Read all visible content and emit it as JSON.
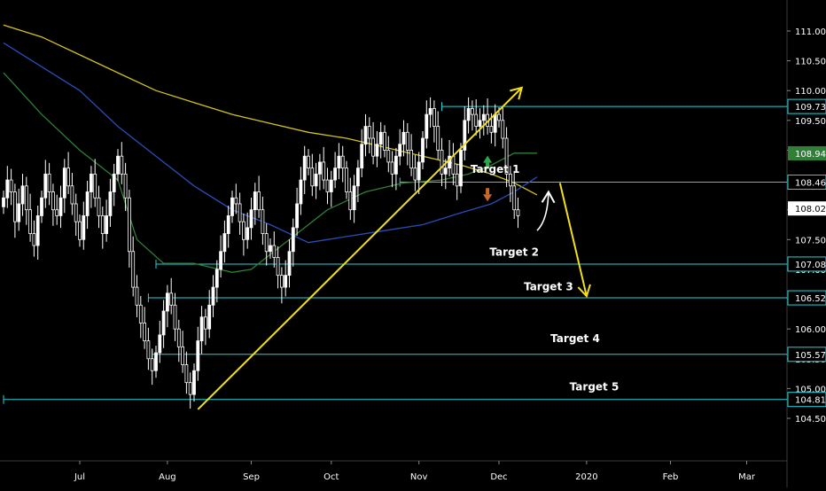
{
  "chart_data": {
    "type": "candlestick",
    "title": "",
    "xlabel": "",
    "ylabel": "",
    "ylim": [
      104.3,
      111.5
    ],
    "y_ticks": [
      104.5,
      105.0,
      105.5,
      106.0,
      106.5,
      107.0,
      107.5,
      108.0,
      108.5,
      109.0,
      109.5,
      110.0,
      110.5,
      111.0
    ],
    "y_tick_labels": [
      "104.500",
      "105.000",
      "105.500",
      "106.000",
      "106.500",
      "107.000",
      "107.500",
      "108.000",
      "108.500",
      "109.000",
      "109.500",
      "110.000",
      "110.500",
      "111.000"
    ],
    "x_ticks": [
      {
        "label": "Jul",
        "date": "2019-07-01"
      },
      {
        "label": "Aug",
        "date": "2019-08-01"
      },
      {
        "label": "Sep",
        "date": "2019-09-02"
      },
      {
        "label": "Oct",
        "date": "2019-10-01"
      },
      {
        "label": "Nov",
        "date": "2019-11-01"
      },
      {
        "label": "Dec",
        "date": "2019-12-02"
      },
      {
        "label": "2020",
        "date": "2020-01-02"
      },
      {
        "label": "Feb",
        "date": "2020-02-03"
      },
      {
        "label": "Mar",
        "date": "2020-03-02"
      }
    ],
    "price_closes": [
      108.2,
      108.5,
      108.3,
      107.8,
      108.1,
      108.4,
      108.0,
      107.6,
      107.4,
      107.9,
      108.2,
      108.6,
      108.3,
      108.0,
      107.9,
      108.2,
      108.7,
      108.4,
      108.1,
      107.8,
      107.5,
      107.9,
      108.3,
      108.6,
      108.2,
      107.9,
      107.6,
      107.9,
      108.3,
      108.6,
      108.9,
      108.6,
      108.2,
      107.3,
      106.7,
      106.4,
      106.1,
      105.8,
      105.5,
      105.3,
      105.6,
      105.9,
      106.3,
      106.6,
      106.4,
      106.0,
      105.7,
      105.4,
      105.1,
      104.9,
      105.3,
      105.8,
      106.2,
      106.0,
      106.4,
      106.7,
      107.0,
      107.3,
      107.6,
      107.9,
      108.2,
      108.1,
      107.8,
      107.5,
      107.7,
      108.0,
      108.3,
      108.0,
      107.6,
      107.3,
      107.4,
      107.2,
      106.9,
      106.7,
      106.9,
      107.3,
      107.7,
      108.1,
      108.5,
      108.9,
      108.7,
      108.4,
      108.6,
      108.8,
      108.5,
      108.3,
      108.5,
      108.7,
      108.9,
      108.7,
      108.3,
      108.0,
      108.4,
      108.7,
      109.1,
      109.4,
      109.2,
      108.9,
      109.1,
      109.3,
      109.0,
      108.8,
      108.6,
      108.9,
      109.1,
      109.3,
      109.0,
      108.7,
      108.5,
      108.8,
      109.2,
      109.6,
      109.7,
      109.4,
      109.0,
      108.6,
      108.7,
      108.9,
      108.6,
      108.4,
      109.0,
      109.5,
      109.7,
      109.6,
      109.4,
      109.5,
      109.6,
      109.4,
      109.3,
      109.6,
      109.5,
      109.2,
      108.6,
      108.4,
      108.0,
      107.9
    ],
    "series": [
      {
        "name": "",
        "color": "#d4c21c",
        "points": [
          [
            0,
            111.1
          ],
          [
            10,
            110.9
          ],
          [
            20,
            110.6
          ],
          [
            30,
            110.3
          ],
          [
            40,
            110.0
          ],
          [
            50,
            109.8
          ],
          [
            60,
            109.6
          ],
          [
            70,
            109.45
          ],
          [
            80,
            109.3
          ],
          [
            90,
            109.2
          ],
          [
            100,
            109.05
          ],
          [
            110,
            108.9
          ],
          [
            120,
            108.75
          ],
          [
            128,
            108.6
          ],
          [
            134,
            108.45
          ],
          [
            140,
            108.25
          ]
        ]
      },
      {
        "name": "",
        "color": "#2a4db8",
        "points": [
          [
            0,
            110.8
          ],
          [
            10,
            110.4
          ],
          [
            20,
            110.0
          ],
          [
            30,
            109.4
          ],
          [
            40,
            108.9
          ],
          [
            50,
            108.4
          ],
          [
            60,
            108.0
          ],
          [
            70,
            107.75
          ],
          [
            80,
            107.45
          ],
          [
            90,
            107.55
          ],
          [
            100,
            107.65
          ],
          [
            110,
            107.75
          ],
          [
            120,
            107.95
          ],
          [
            128,
            108.1
          ],
          [
            134,
            108.3
          ],
          [
            140,
            108.55
          ]
        ]
      },
      {
        "name": "",
        "color": "#2f7f36",
        "points": [
          [
            0,
            110.3
          ],
          [
            10,
            109.6
          ],
          [
            20,
            109.0
          ],
          [
            30,
            108.5
          ],
          [
            35,
            107.5
          ],
          [
            42,
            107.1
          ],
          [
            50,
            107.1
          ],
          [
            60,
            106.95
          ],
          [
            65,
            107.0
          ],
          [
            75,
            107.5
          ],
          [
            85,
            108.0
          ],
          [
            95,
            108.3
          ],
          [
            105,
            108.45
          ],
          [
            115,
            108.5
          ],
          [
            122,
            108.6
          ],
          [
            128,
            108.75
          ],
          [
            134,
            108.95
          ],
          [
            140,
            108.95
          ]
        ]
      }
    ],
    "horizontal_levels": [
      {
        "value": 109.734,
        "label": "109.734",
        "from": 115
      },
      {
        "value": 108.464,
        "label": "108.464",
        "from": 104
      },
      {
        "value": 107.089,
        "label": "107.089",
        "from": 40
      },
      {
        "value": 106.522,
        "label": "106.522",
        "from": 38
      },
      {
        "value": 105.574,
        "label": "105.574",
        "from": 39
      },
      {
        "value": 104.817,
        "label": "104.817",
        "from": 0
      }
    ],
    "price_badges": [
      {
        "value": 108.948,
        "label": "108.948",
        "bg": "#2f7f36",
        "fg": "#ffffff"
      },
      {
        "value": 108.022,
        "label": "108.022",
        "bg": "#ffffff",
        "fg": "#000000"
      }
    ],
    "annotations": [
      {
        "text": "Target  1",
        "x": 129,
        "y": 108.62
      },
      {
        "text": "Target  2",
        "x": 134,
        "y": 107.23
      },
      {
        "text": "Target 3",
        "x": 143,
        "y": 106.65
      },
      {
        "text": "Target 4",
        "x": 150,
        "y": 105.78
      },
      {
        "text": "Target 5",
        "x": 155,
        "y": 104.97
      }
    ],
    "trendline": {
      "from": [
        51,
        104.65
      ],
      "to": [
        136,
        110.05
      ],
      "color": "#f2e01a"
    },
    "projection_arrow": [
      [
        146,
        108.45
      ],
      [
        153,
        106.55
      ]
    ],
    "bounce_arrow": [
      [
        140,
        107.65
      ],
      [
        143,
        108.3
      ]
    ],
    "colors": {
      "candle": "#ffffff",
      "level": "#22d3d8",
      "grid": "#444444",
      "axis_text": "#ffffff"
    }
  }
}
